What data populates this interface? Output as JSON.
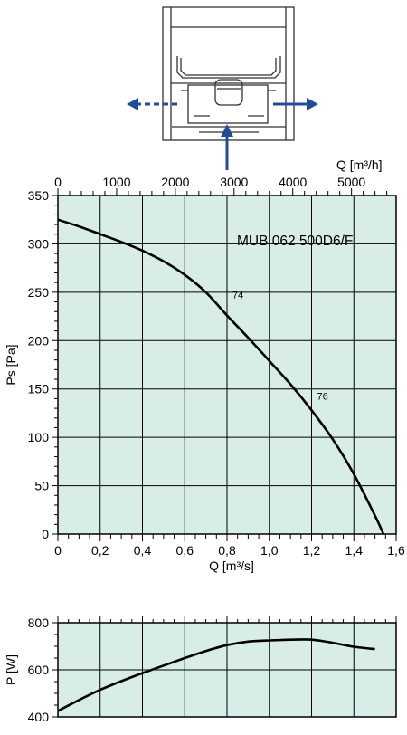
{
  "colors": {
    "plot_bg": "#d8ece8",
    "grid": "#000000",
    "curve": "#000000",
    "arrow": "#1f4e96",
    "diagram_line": "#333333"
  },
  "diagram": {
    "icon": "fan-unit-airflow-diagram"
  },
  "chart_data": [
    {
      "type": "line",
      "title": "MUB 062 500D6/F",
      "xlabel": "Q [m³/s]",
      "ylabel": "Ps [Pa]",
      "xlim": [
        0,
        1.6
      ],
      "ylim": [
        0,
        350
      ],
      "x_ticks": [
        "0",
        "0,2",
        "0,4",
        "0,6",
        "0,8",
        "1,0",
        "1,2",
        "1,4",
        "1,6"
      ],
      "y_ticks": [
        "0",
        "50",
        "100",
        "150",
        "200",
        "250",
        "300",
        "350"
      ],
      "secondary_x_axis": {
        "label": "Q [m³/h]",
        "ticks": [
          "0",
          "1000",
          "2000",
          "3000",
          "4000",
          "5000"
        ]
      },
      "grid": true,
      "series": [
        {
          "x": [
            0,
            0.1,
            0.2,
            0.3,
            0.4,
            0.5,
            0.6,
            0.7,
            0.8,
            0.9,
            1.0,
            1.1,
            1.2,
            1.3,
            1.4,
            1.5,
            1.54
          ],
          "y": [
            325,
            318,
            310,
            302,
            293,
            282,
            268,
            250,
            226,
            203,
            179,
            155,
            128,
            98,
            62,
            19,
            0
          ]
        }
      ],
      "annotations": [
        {
          "text": "74",
          "x": 0.8,
          "y": 240
        },
        {
          "text": "76",
          "x": 1.2,
          "y": 135
        }
      ]
    },
    {
      "type": "line",
      "xlabel": "",
      "ylabel": "P [W]",
      "xlim": [
        0,
        1.6
      ],
      "ylim": [
        400,
        800
      ],
      "y_ticks": [
        "400",
        "600",
        "800"
      ],
      "grid": true,
      "series": [
        {
          "x": [
            0,
            0.1,
            0.2,
            0.3,
            0.4,
            0.5,
            0.6,
            0.7,
            0.8,
            0.9,
            1.0,
            1.1,
            1.2,
            1.3,
            1.4,
            1.5
          ],
          "y": [
            425,
            472,
            515,
            552,
            586,
            618,
            650,
            680,
            705,
            720,
            725,
            728,
            728,
            715,
            698,
            688
          ]
        }
      ]
    }
  ]
}
